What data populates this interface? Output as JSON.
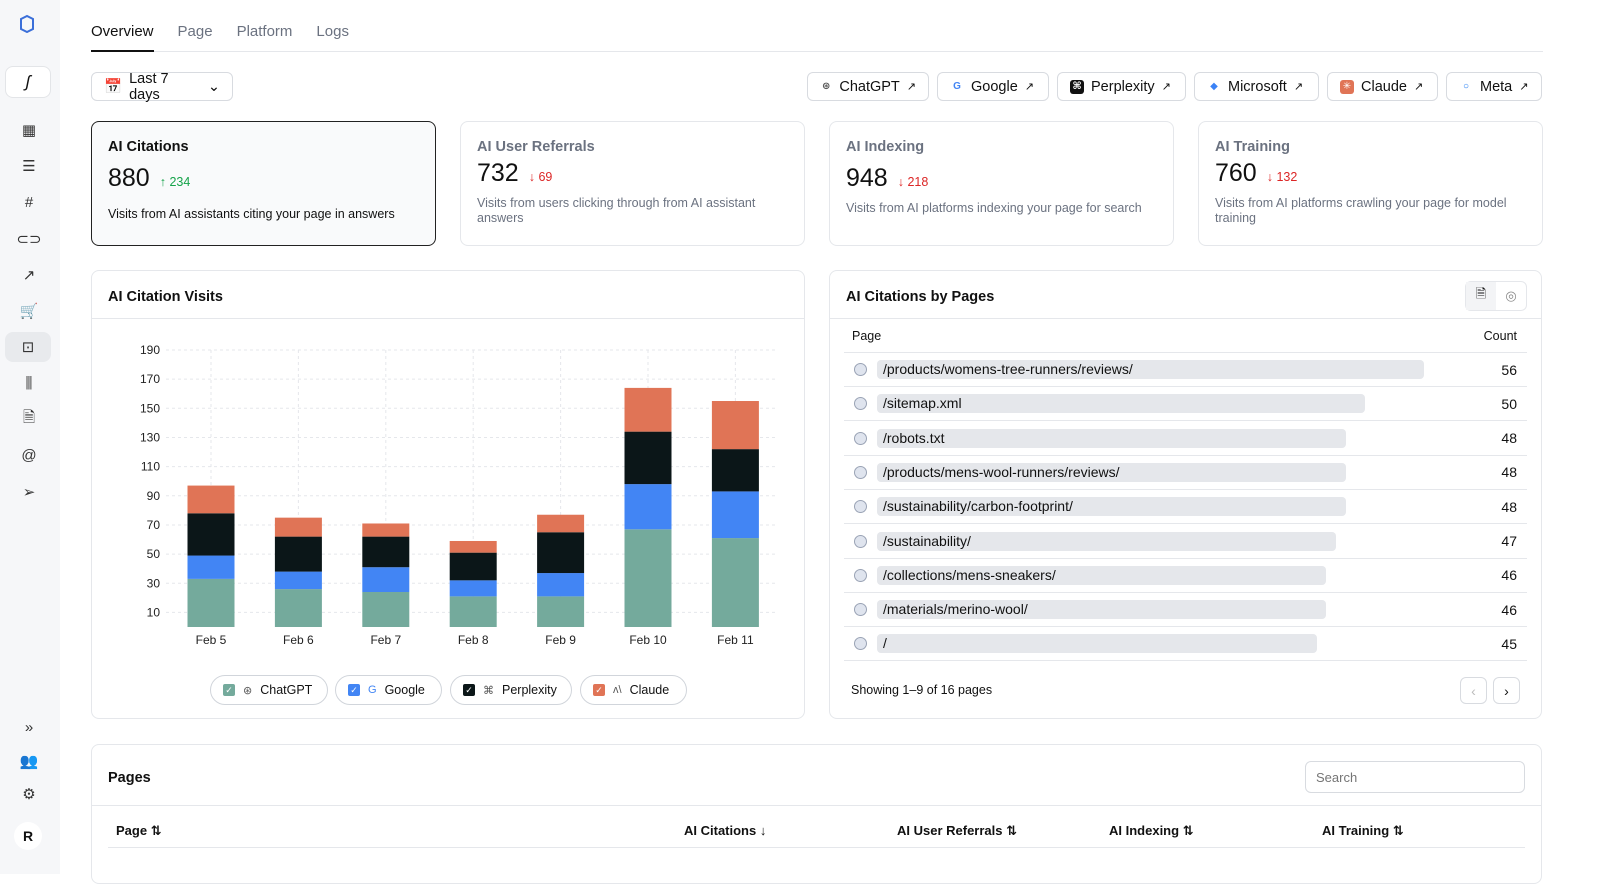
{
  "sidebar": {
    "brand_glyph": "ʃ",
    "avatar_initial": "R",
    "icons": [
      "dashboard-icon",
      "message-icon",
      "hash-icon",
      "link-icon",
      "trending-icon",
      "cart-icon",
      "bot-icon",
      "library-icon",
      "document-icon",
      "at-icon",
      "send-icon"
    ],
    "bottom_icons": [
      "expand-icon",
      "users-icon",
      "settings-icon"
    ]
  },
  "tabs": [
    {
      "label": "Overview",
      "active": true
    },
    {
      "label": "Page"
    },
    {
      "label": "Platform"
    },
    {
      "label": "Logs"
    }
  ],
  "date_filter": {
    "label": "Last 7 days"
  },
  "platforms": [
    {
      "label": "ChatGPT",
      "color": "#555555"
    },
    {
      "label": "Google",
      "color": "#4285f4"
    },
    {
      "label": "Perplexity",
      "color": "#111111"
    },
    {
      "label": "Microsoft",
      "color": "#3b82f6"
    },
    {
      "label": "Claude",
      "color": "#e07456"
    },
    {
      "label": "Meta",
      "color": "#1877f2"
    }
  ],
  "metrics": [
    {
      "title": "AI Citations",
      "value": "880",
      "delta": "234",
      "direction": "up",
      "desc": "Visits from AI assistants citing your page in answers"
    },
    {
      "title": "AI User Referrals",
      "value": "732",
      "delta": "69",
      "direction": "down",
      "desc": "Visits from users clicking through from AI assistant answers"
    },
    {
      "title": "AI Indexing",
      "value": "948",
      "delta": "218",
      "direction": "down",
      "desc": "Visits from AI platforms indexing your page for search"
    },
    {
      "title": "AI Training",
      "value": "760",
      "delta": "132",
      "direction": "down",
      "desc": "Visits from AI platforms crawling your page for model training"
    }
  ],
  "chart_data": {
    "type": "bar",
    "stacked": true,
    "title": "AI Citation Visits",
    "categories": [
      "Feb 5",
      "Feb 6",
      "Feb 7",
      "Feb 8",
      "Feb 9",
      "Feb 10",
      "Feb 11"
    ],
    "yticks": [
      10,
      30,
      50,
      70,
      90,
      110,
      130,
      150,
      170,
      190
    ],
    "ylim": [
      0,
      190
    ],
    "grid": true,
    "legend": "bottom",
    "series": [
      {
        "name": "ChatGPT",
        "color": "#74aa9c",
        "values": [
          33,
          26,
          24,
          21,
          21,
          67,
          61
        ]
      },
      {
        "name": "Google",
        "color": "#4285f4",
        "values": [
          16,
          12,
          17,
          11,
          16,
          31,
          32
        ]
      },
      {
        "name": "Perplexity",
        "color": "#0b1618",
        "values": [
          29,
          24,
          21,
          19,
          28,
          36,
          29
        ]
      },
      {
        "name": "Claude",
        "color": "#e07456",
        "values": [
          19,
          13,
          9,
          8,
          12,
          30,
          33
        ]
      }
    ]
  },
  "citations_by_pages": {
    "title": "AI Citations by Pages",
    "col_page": "Page",
    "col_count": "Count",
    "rows": [
      {
        "page": "/products/womens-tree-runners/reviews/",
        "count": 56
      },
      {
        "page": "/sitemap.xml",
        "count": 50
      },
      {
        "page": "/robots.txt",
        "count": 48
      },
      {
        "page": "/products/mens-wool-runners/reviews/",
        "count": 48
      },
      {
        "page": "/sustainability/carbon-footprint/",
        "count": 48
      },
      {
        "page": "/sustainability/",
        "count": 47
      },
      {
        "page": "/collections/mens-sneakers/",
        "count": 46
      },
      {
        "page": "/materials/merino-wool/",
        "count": 46
      },
      {
        "page": "/",
        "count": 45
      }
    ],
    "footer": "Showing 1–9 of 16 pages",
    "prev": "‹",
    "next": "›"
  },
  "pages_table": {
    "title": "Pages",
    "search_placeholder": "Search",
    "columns": [
      "Page ⇅",
      "AI Citations ↓",
      "AI User Referrals ⇅",
      "AI Indexing ⇅",
      "AI Training ⇅"
    ]
  }
}
